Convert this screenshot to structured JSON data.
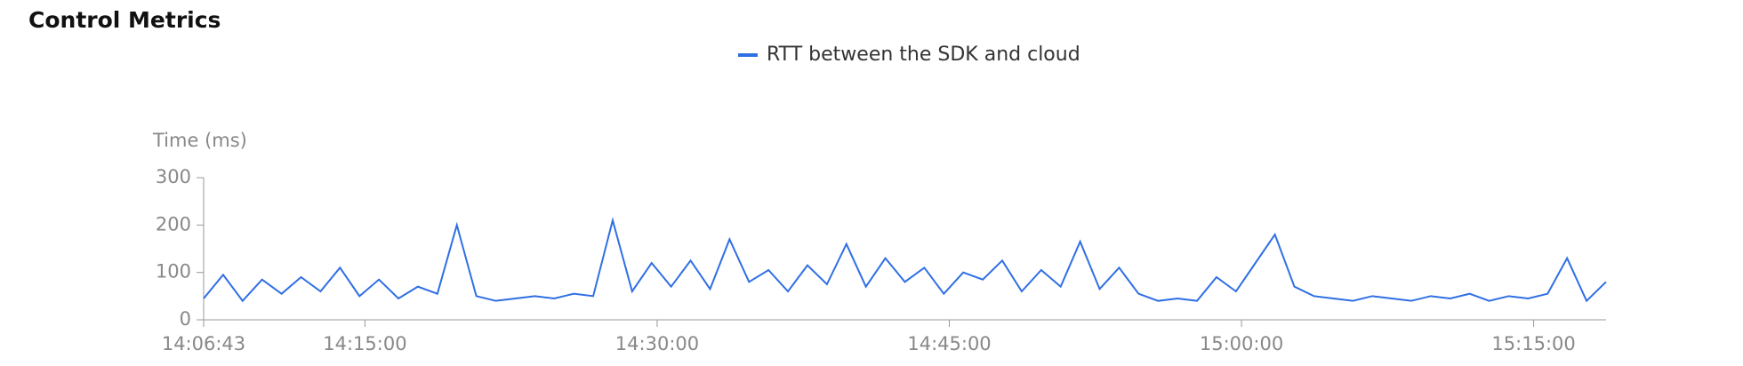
{
  "header": {
    "title": "Control Metrics"
  },
  "chart_data": {
    "type": "line",
    "y_label": "Time (ms)",
    "x": [
      "14:06:43",
      "14:07:43",
      "14:08:43",
      "14:09:43",
      "14:10:43",
      "14:11:43",
      "14:12:43",
      "14:13:43",
      "14:14:43",
      "14:15:43",
      "14:16:43",
      "14:17:43",
      "14:18:43",
      "14:19:43",
      "14:20:43",
      "14:21:43",
      "14:22:43",
      "14:23:43",
      "14:24:43",
      "14:25:43",
      "14:26:43",
      "14:27:43",
      "14:28:43",
      "14:29:43",
      "14:30:43",
      "14:31:43",
      "14:32:43",
      "14:33:43",
      "14:34:43",
      "14:35:43",
      "14:36:43",
      "14:37:43",
      "14:38:43",
      "14:39:43",
      "14:40:43",
      "14:41:43",
      "14:42:43",
      "14:43:43",
      "14:44:43",
      "14:45:43",
      "14:46:43",
      "14:47:43",
      "14:48:43",
      "14:49:43",
      "14:50:43",
      "14:51:43",
      "14:52:43",
      "14:53:43",
      "14:54:43",
      "14:55:43",
      "14:56:43",
      "14:57:43",
      "14:58:43",
      "14:59:43",
      "15:00:43",
      "15:01:43",
      "15:02:43",
      "15:03:43",
      "15:04:43",
      "15:05:43",
      "15:06:43",
      "15:07:43",
      "15:08:43",
      "15:09:43",
      "15:10:43",
      "15:11:43",
      "15:12:43",
      "15:13:43",
      "15:14:43",
      "15:15:43",
      "15:16:43",
      "15:17:43",
      "15:18:43"
    ],
    "series": [
      {
        "name": "RTT between the SDK and cloud",
        "color": "#2f6fe4",
        "values": [
          45,
          95,
          40,
          85,
          55,
          90,
          60,
          110,
          50,
          85,
          45,
          70,
          55,
          200,
          50,
          40,
          45,
          50,
          45,
          55,
          50,
          210,
          60,
          120,
          70,
          125,
          65,
          170,
          80,
          105,
          60,
          115,
          75,
          160,
          70,
          130,
          80,
          110,
          55,
          100,
          85,
          125,
          60,
          105,
          70,
          165,
          65,
          110,
          55,
          40,
          45,
          40,
          90,
          60,
          120,
          180,
          70,
          50,
          45,
          40,
          50,
          45,
          40,
          50,
          45,
          55,
          40,
          50,
          45,
          55,
          130,
          40,
          80
        ]
      }
    ],
    "xlim": [
      "14:06:43",
      "15:18:43"
    ],
    "xticks": [
      "14:06:43",
      "14:15:00",
      "14:30:00",
      "14:45:00",
      "15:00:00",
      "15:15:00"
    ],
    "ylim": [
      0,
      300
    ],
    "yticks": [
      0,
      100,
      200,
      300
    ]
  }
}
